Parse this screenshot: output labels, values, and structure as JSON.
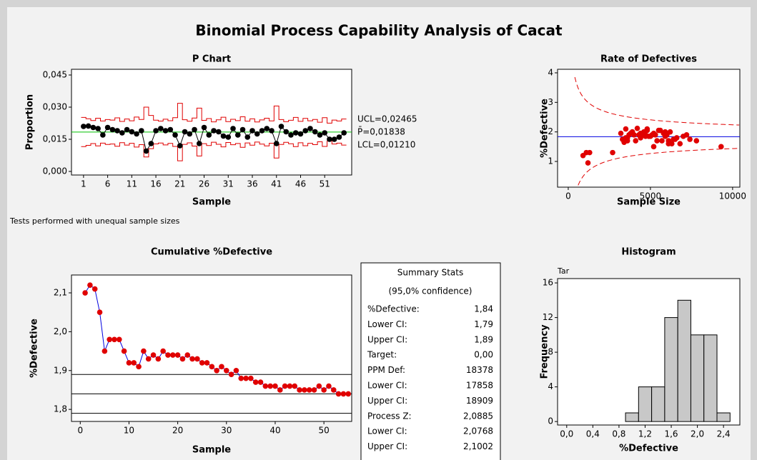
{
  "page": {
    "title": "Binomial Process Capability Analysis of Cacat",
    "note": "Tests performed with unequal sample sizes"
  },
  "chart_data": [
    {
      "type": "pchart",
      "title": "P Chart",
      "x_label": "Sample",
      "y_label": "Proportion",
      "x": [
        1,
        2,
        3,
        4,
        5,
        6,
        7,
        8,
        9,
        10,
        11,
        12,
        13,
        14,
        15,
        16,
        17,
        18,
        19,
        20,
        21,
        22,
        23,
        24,
        25,
        26,
        27,
        28,
        29,
        30,
        31,
        32,
        33,
        34,
        35,
        36,
        37,
        38,
        39,
        40,
        41,
        42,
        43,
        44,
        45,
        46,
        47,
        48,
        49,
        50,
        51,
        52,
        53,
        54,
        55
      ],
      "values": [
        0.021,
        0.0212,
        0.0205,
        0.02,
        0.017,
        0.0205,
        0.0195,
        0.019,
        0.018,
        0.0195,
        0.0185,
        0.0175,
        0.019,
        0.0095,
        0.013,
        0.019,
        0.02,
        0.019,
        0.0195,
        0.017,
        0.012,
        0.0185,
        0.0175,
        0.0195,
        0.013,
        0.0205,
        0.017,
        0.019,
        0.0185,
        0.0165,
        0.016,
        0.02,
        0.017,
        0.0195,
        0.016,
        0.019,
        0.0175,
        0.019,
        0.02,
        0.019,
        0.013,
        0.021,
        0.0185,
        0.017,
        0.018,
        0.0175,
        0.019,
        0.02,
        0.0185,
        0.017,
        0.018,
        0.015,
        0.015,
        0.016,
        0.018
      ],
      "center": 0.01838,
      "color": "#000000",
      "center_color": "#00c000",
      "limit_color": "#e00000",
      "annotations": [
        "UCL=0,02465",
        "P̄=0,01838",
        "LCL=0,01210"
      ],
      "xlim": [
        -1.5,
        56.6
      ],
      "ylim": [
        -0.00167,
        0.04767
      ],
      "xticks": [
        1,
        6,
        11,
        16,
        21,
        26,
        31,
        36,
        41,
        46,
        51
      ],
      "yticks": [
        {
          "value": 0,
          "label": "0,000"
        },
        {
          "value": 0.015,
          "label": "0,015"
        },
        {
          "value": 0.03,
          "label": "0,030"
        },
        {
          "value": 0.045,
          "label": "0,045"
        }
      ]
    },
    {
      "type": "rate",
      "title": "Rate of Defectives",
      "x_label": "Sample Size",
      "y_label": "%Defective",
      "x": [
        3500,
        4200,
        5600,
        3900,
        6100,
        4800,
        5200,
        3700,
        6600,
        4400,
        5900,
        3300,
        4700,
        1200,
        2700,
        5300,
        6200,
        4500,
        5800,
        3600,
        900,
        4900,
        6400,
        3800,
        1300,
        5500,
        4100,
        7200,
        5000,
        3400,
        6800,
        4600,
        5700,
        3200,
        6300,
        4300,
        7400,
        5100,
        3900,
        6000,
        1100,
        4800,
        7000,
        5400,
        3500,
        6500,
        4000,
        5900,
        4700,
        7800,
        3600,
        9300,
        5200,
        6100,
        4400
      ],
      "values": [
        2.1,
        2.12,
        2.05,
        2.0,
        1.7,
        2.05,
        1.95,
        1.9,
        1.8,
        1.95,
        1.85,
        1.75,
        1.9,
        0.95,
        1.3,
        1.9,
        2.0,
        1.9,
        1.95,
        1.7,
        1.2,
        1.85,
        1.75,
        1.95,
        1.3,
        2.05,
        1.7,
        1.9,
        1.85,
        1.65,
        1.6,
        2.0,
        1.7,
        1.95,
        1.6,
        1.9,
        1.75,
        1.9,
        2.0,
        1.9,
        1.3,
        2.1,
        1.85,
        1.7,
        1.8,
        1.75,
        1.9,
        2.0,
        1.85,
        1.7,
        1.8,
        1.5,
        1.5,
        1.6,
        1.8
      ],
      "center": 1.838,
      "color": "#e00000",
      "center_color": "#0000e0",
      "xlim": [
        -650,
        10440
      ],
      "ylim": [
        0.13,
        4.12
      ],
      "xticks": [
        0,
        5000,
        10000
      ],
      "yticks": [
        1,
        2,
        3,
        4
      ]
    },
    {
      "type": "cumulative",
      "title": "Cumulative %Defective",
      "x_label": "Sample",
      "y_label": "%Defective",
      "x": [
        1,
        2,
        3,
        4,
        5,
        6,
        7,
        8,
        9,
        10,
        11,
        12,
        13,
        14,
        15,
        16,
        17,
        18,
        19,
        20,
        21,
        22,
        23,
        24,
        25,
        26,
        27,
        28,
        29,
        30,
        31,
        32,
        33,
        34,
        35,
        36,
        37,
        38,
        39,
        40,
        41,
        42,
        43,
        44,
        45,
        46,
        47,
        48,
        49,
        50,
        51,
        52,
        53,
        54,
        55
      ],
      "values": [
        2.1,
        2.12,
        2.11,
        2.05,
        1.95,
        1.98,
        1.98,
        1.98,
        1.95,
        1.92,
        1.92,
        1.91,
        1.95,
        1.93,
        1.94,
        1.93,
        1.95,
        1.94,
        1.94,
        1.94,
        1.93,
        1.94,
        1.93,
        1.93,
        1.92,
        1.92,
        1.91,
        1.9,
        1.91,
        1.9,
        1.89,
        1.9,
        1.88,
        1.88,
        1.88,
        1.87,
        1.87,
        1.86,
        1.86,
        1.86,
        1.85,
        1.86,
        1.86,
        1.86,
        1.85,
        1.85,
        1.85,
        1.85,
        1.86,
        1.85,
        1.86,
        1.85,
        1.84,
        1.84,
        1.84
      ],
      "hlines": [
        1.79,
        1.84,
        1.89
      ],
      "color": "#e00000",
      "line_color": "#0000e0",
      "xlim": [
        -1.8,
        55.7
      ],
      "ylim": [
        1.769,
        2.146
      ],
      "xticks": [
        0,
        10,
        20,
        30,
        40,
        50
      ],
      "yticks": [
        {
          "value": 1.8,
          "label": "1,8"
        },
        {
          "value": 1.9,
          "label": "1,9"
        },
        {
          "value": 2.0,
          "label": "2,0"
        },
        {
          "value": 2.1,
          "label": "2,1"
        }
      ]
    },
    {
      "type": "histogram",
      "title": "Histogram",
      "x_label": "%Defective",
      "y_label": "Frequency",
      "annotation": "Tar",
      "bins": [
        0.9,
        1.1,
        1.3,
        1.5,
        1.7,
        1.9,
        2.1,
        2.3,
        2.5
      ],
      "values": [
        1,
        4,
        4,
        12,
        14,
        10,
        10,
        1
      ],
      "color": "#c8c8c8",
      "xlim": [
        -0.14,
        2.65
      ],
      "ylim": [
        -0.4,
        16.5
      ],
      "xticks": [
        {
          "value": 0,
          "label": "0,0"
        },
        {
          "value": 0.4,
          "label": "0,4"
        },
        {
          "value": 0.8,
          "label": "0,8"
        },
        {
          "value": 1.2,
          "label": "1,2"
        },
        {
          "value": 1.6,
          "label": "1,6"
        },
        {
          "value": 2.0,
          "label": "2,0"
        },
        {
          "value": 2.4,
          "label": "2,4"
        }
      ],
      "yticks": [
        0,
        4,
        8,
        12,
        16
      ]
    }
  ],
  "summary": {
    "title": "Summary Stats",
    "subtitle": "(95,0% confidence)",
    "rows": [
      [
        "%Defective:",
        "1,84"
      ],
      [
        "Lower CI:",
        "1,79"
      ],
      [
        "Upper CI:",
        "1,89"
      ],
      [
        "Target:",
        "0,00"
      ],
      [
        "PPM Def:",
        "18378"
      ],
      [
        "Lower CI:",
        "17858"
      ],
      [
        "Upper CI:",
        "18909"
      ],
      [
        "Process Z:",
        "2,0885"
      ],
      [
        "Lower CI:",
        "2,0768"
      ],
      [
        "Upper CI:",
        "2,1002"
      ]
    ]
  }
}
